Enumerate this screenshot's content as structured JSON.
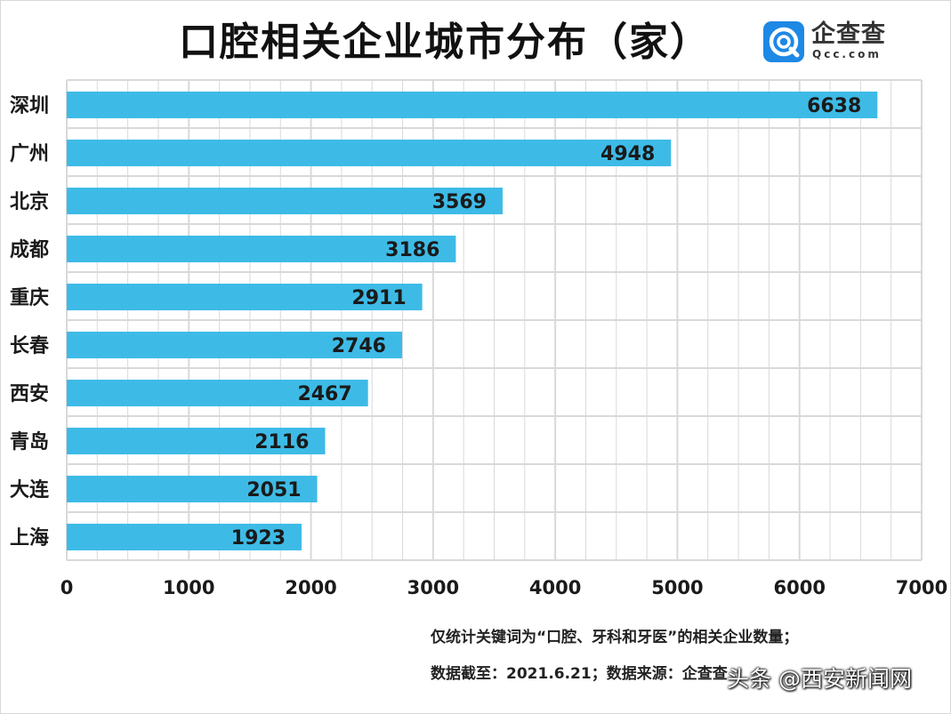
{
  "chart_data": {
    "type": "bar",
    "orientation": "horizontal",
    "title": "口腔相关企业城市分布（家）",
    "categories": [
      "深圳",
      "广州",
      "北京",
      "成都",
      "重庆",
      "长春",
      "西安",
      "青岛",
      "大连",
      "上海"
    ],
    "values": [
      6638,
      4948,
      3569,
      3186,
      2911,
      2746,
      2467,
      2116,
      2051,
      1923
    ],
    "x_ticks": [
      0,
      1000,
      2000,
      3000,
      4000,
      5000,
      6000,
      7000
    ],
    "xlim": [
      0,
      7000
    ],
    "xlabel": "",
    "ylabel": "",
    "grid": true,
    "bar_color": "#3dbbe6",
    "gridline_color": "#d9d9d9"
  },
  "header": {
    "title": "口腔相关企业城市分布（家）"
  },
  "brand": {
    "name": "企查查",
    "domain": "Qcc.com",
    "color": "#1e88e5"
  },
  "footnotes": {
    "line1": "仅统计关键词为“口腔、牙科和牙医”的相关企业数量；",
    "line2": "数据截至：2021.6.21；数据来源：企查查"
  },
  "watermark": {
    "text": "头条 @西安新闻网"
  }
}
